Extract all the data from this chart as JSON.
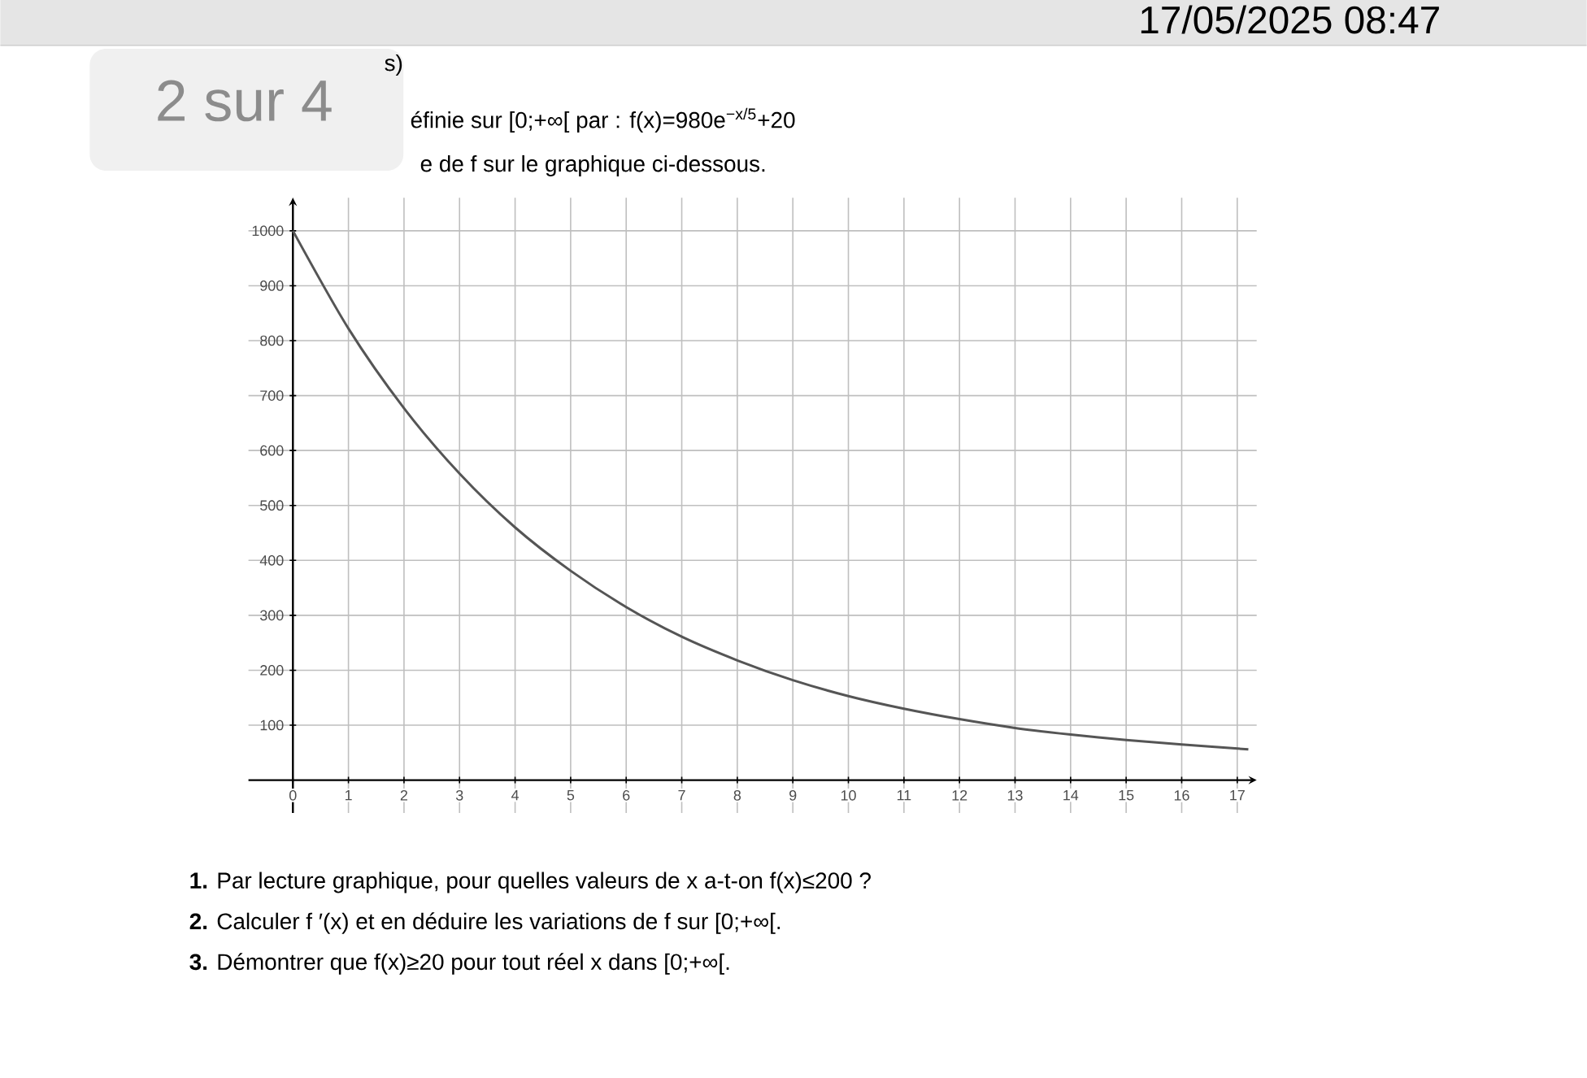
{
  "chart_data": {
    "type": "line",
    "x": [
      0,
      1,
      2,
      3,
      4,
      5,
      6,
      7,
      8,
      9,
      10,
      11,
      12,
      13,
      14,
      15,
      16,
      17.2
    ],
    "values": [
      1000,
      822,
      677,
      558,
      460,
      381,
      315,
      261,
      218,
      182,
      153,
      130,
      111,
      95,
      83,
      73,
      65,
      56
    ],
    "color": "#555555",
    "xlim": [
      -0.8,
      17.35
    ],
    "ylim": [
      -60,
      1060
    ],
    "xticks": [
      0,
      1,
      2,
      3,
      4,
      5,
      6,
      7,
      8,
      9,
      10,
      11,
      12,
      13,
      14,
      15,
      16,
      17
    ],
    "yticks": [
      100,
      200,
      300,
      400,
      500,
      600,
      700,
      800,
      900,
      1000
    ],
    "grid": true,
    "annotations": [
      "17/05/2025 08:47",
      "2 sur 4",
      "s)",
      "éfinie sur [0;+∞[ par : f(x)=980e$^{−x/5}$+20",
      "e de f sur le graphique ci-dessous.",
      "**1.** Par lecture graphique, pour quelles valeurs de x a-t-on f(x)≤200 ?",
      "**2.** Calculer f ′(x) et en déduire les variations de f sur [0;+∞[.",
      "**3.** Démontrer que f(x)≥20 pour tout réel x dans [0;+∞[."
    ]
  }
}
